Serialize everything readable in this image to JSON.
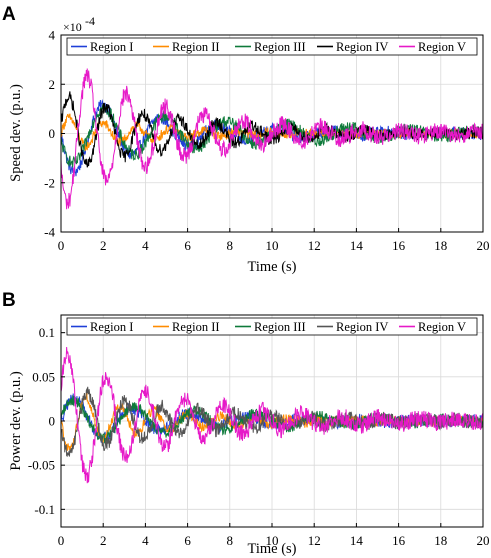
{
  "panels": {
    "a": {
      "letter": "A"
    },
    "b": {
      "letter": "B"
    }
  },
  "chart_data": [
    {
      "type": "line",
      "xlabel": "Time (s)",
      "ylabel": "Speed dev. (p.u.)",
      "scale_label": "×10",
      "scale_exponent": "-4",
      "xlim": [
        0,
        20
      ],
      "ylim": [
        -4,
        4
      ],
      "xticks": [
        0,
        2,
        4,
        6,
        8,
        10,
        12,
        14,
        16,
        18,
        20
      ],
      "yticks": [
        -4,
        -2,
        0,
        2,
        4
      ],
      "grid": true,
      "legend": "top",
      "series": [
        {
          "name": "Region I",
          "color": "#1f3fd8",
          "amp": 1.8,
          "period": 2.7,
          "phase": 3.14,
          "decay": 0.22,
          "noise": 0.25
        },
        {
          "name": "Region II",
          "color": "#ff8c00",
          "amp": 0.7,
          "period": 1.6,
          "phase": 0.0,
          "decay": 0.25,
          "noise": 0.2
        },
        {
          "name": "Region III",
          "color": "#0e7a3a",
          "amp": 1.3,
          "period": 2.9,
          "phase": 3.4,
          "decay": 0.12,
          "noise": 0.25
        },
        {
          "name": "Region IV",
          "color": "#000000",
          "amp": 1.6,
          "period": 1.75,
          "phase": 0.2,
          "decay": 0.18,
          "noise": 0.25
        },
        {
          "name": "Region V",
          "color": "#e619c8",
          "amp": 3.0,
          "period": 1.85,
          "phase": 3.6,
          "decay": 0.2,
          "noise": 0.35
        }
      ]
    },
    {
      "type": "line",
      "xlabel": "Time (s)",
      "ylabel": "Power dev. (p.u.)",
      "xlim": [
        0,
        20
      ],
      "ylim": [
        -0.12,
        0.12
      ],
      "xticks": [
        0,
        2,
        4,
        6,
        8,
        10,
        12,
        14,
        16,
        18,
        20
      ],
      "yticks": [
        -0.1,
        -0.05,
        0,
        0.05,
        0.1
      ],
      "ytick_labels": [
        "-0.1",
        "-0.05",
        "0",
        "0.05",
        "0.1"
      ],
      "grid": true,
      "legend": "top",
      "series": [
        {
          "name": "Region I",
          "color": "#1f3fd8",
          "amp": 0.03,
          "period": 2.7,
          "phase": 0.0,
          "decay": 0.22,
          "noise": 0.007
        },
        {
          "name": "Region II",
          "color": "#ff8c00",
          "amp": 0.035,
          "period": 1.6,
          "phase": 3.14,
          "decay": 0.25,
          "noise": 0.006
        },
        {
          "name": "Region III",
          "color": "#0e7a3a",
          "amp": 0.025,
          "period": 2.9,
          "phase": 0.3,
          "decay": 0.12,
          "noise": 0.006
        },
        {
          "name": "Region IV",
          "color": "#555555",
          "amp": 0.04,
          "period": 1.75,
          "phase": 3.3,
          "decay": 0.18,
          "noise": 0.008
        },
        {
          "name": "Region V",
          "color": "#e619c8",
          "amp": 0.08,
          "period": 1.85,
          "phase": 0.5,
          "decay": 0.2,
          "noise": 0.01
        }
      ]
    }
  ]
}
